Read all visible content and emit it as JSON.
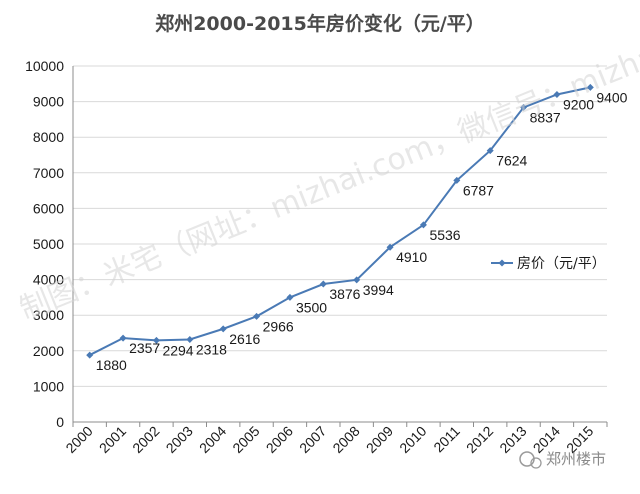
{
  "watermark": "制图：米宅（网址：mizhai.com，微信号：mizhaicom）",
  "brand": {
    "name": "郑州楼市"
  },
  "chart_data": {
    "type": "line",
    "title": "郑州2000-2015年房价变化（元/平）",
    "categories": [
      "2000",
      "2001",
      "2002",
      "2003",
      "2004",
      "2005",
      "2006",
      "2007",
      "2008",
      "2009",
      "2010",
      "2011",
      "2012",
      "2013",
      "2014",
      "2015"
    ],
    "series": [
      {
        "name": "房价（元/平）",
        "values": [
          1880,
          2357,
          2294,
          2318,
          2616,
          2966,
          3500,
          3876,
          3994,
          4910,
          5536,
          6787,
          7624,
          8837,
          9200,
          9400
        ],
        "color": "#4a7ab5"
      }
    ],
    "data_labels": [
      "1880",
      "2357",
      "2294",
      "2318",
      "2616",
      "2966",
      "3500",
      "3876",
      "3994",
      "4910",
      "5536",
      "6787",
      "7624",
      "8837",
      "9200",
      "9400"
    ],
    "y_ticks": [
      "0",
      "1000",
      "2000",
      "3000",
      "4000",
      "5000",
      "6000",
      "7000",
      "8000",
      "9000",
      "10000"
    ],
    "ylim": [
      0,
      10000
    ],
    "grid": true,
    "legend_position": "right"
  }
}
